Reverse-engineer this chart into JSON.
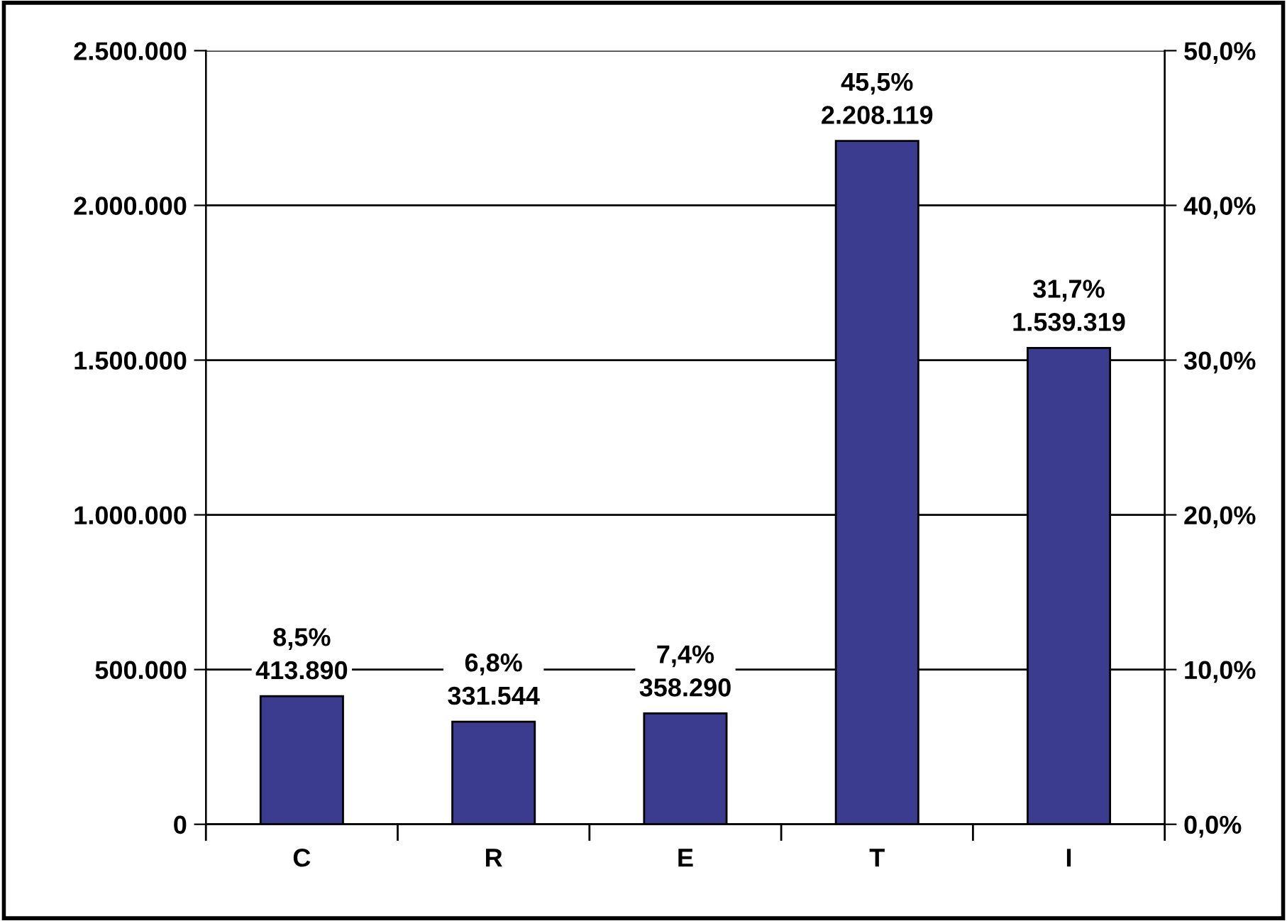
{
  "chart_data": {
    "type": "bar",
    "categories": [
      "C",
      "R",
      "E",
      "T",
      "I"
    ],
    "values": [
      413890,
      331544,
      358290,
      2208119,
      1539319
    ],
    "color": "#3b3b8f",
    "value_labels": [
      "8,5%\n413.890",
      "6,8%\n331.544",
      "7,4%\n358.290",
      "45,5%\n2.208.119",
      "31,7%\n1.539.319"
    ],
    "ylim": [
      0,
      2500000
    ],
    "yticks": [
      {
        "value": 0,
        "label": "0"
      },
      {
        "value": 500000,
        "label": "500.000"
      },
      {
        "value": 1000000,
        "label": "1.000.000"
      },
      {
        "value": 1500000,
        "label": "1.500.000"
      },
      {
        "value": 2000000,
        "label": "2.000.000"
      },
      {
        "value": 2500000,
        "label": "2.500.000"
      }
    ],
    "y2lim": [
      0,
      50
    ],
    "y2ticks": [
      {
        "value": 0,
        "label": "0,0%"
      },
      {
        "value": 10,
        "label": "10,0%"
      },
      {
        "value": 20,
        "label": "20,0%"
      },
      {
        "value": 30,
        "label": "30,0%"
      },
      {
        "value": 40,
        "label": "40,0%"
      },
      {
        "value": 50,
        "label": "50,0%"
      }
    ],
    "grid": "y"
  }
}
